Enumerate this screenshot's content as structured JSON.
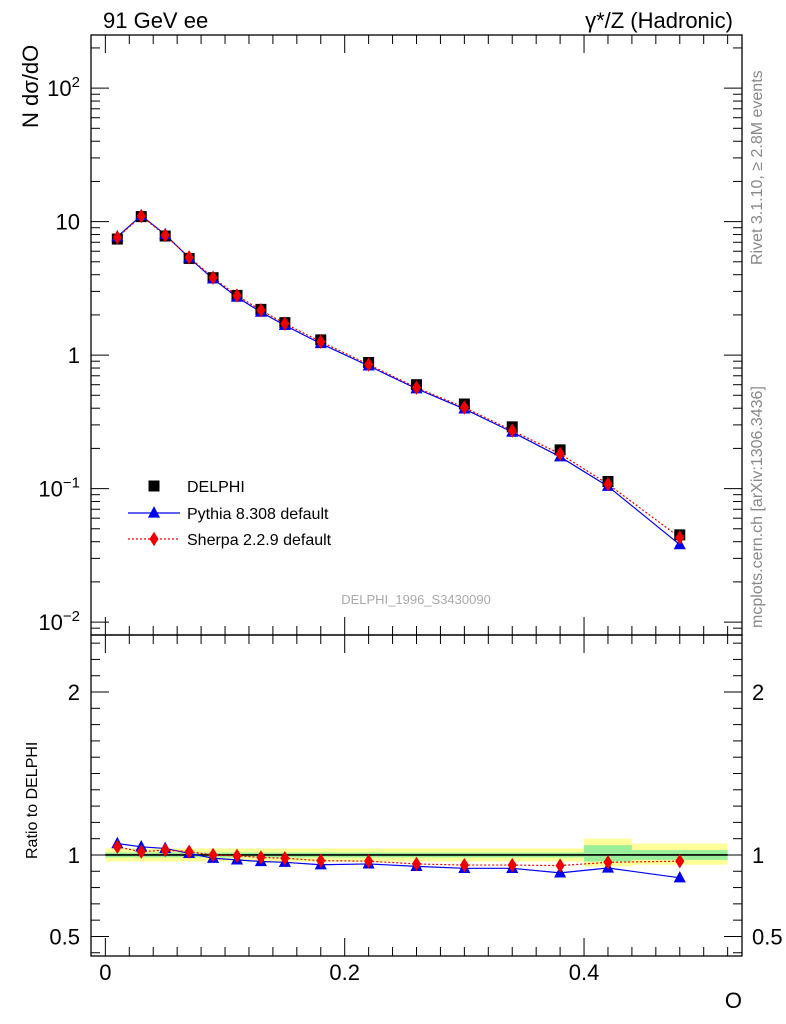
{
  "header": {
    "left": "91 GeV ee",
    "right": "γ*/Z (Hadronic)"
  },
  "side_text": {
    "rivet": "Rivet 3.1.10, ≥ 2.8M events",
    "site": "mcplots.cern.ch [arXiv:1306.3436]"
  },
  "watermark": "DELPHI_1996_S3430090",
  "colors": {
    "data": "#000000",
    "pythia": "#0000ee",
    "sherpa": "#ee0000",
    "band_yellow": "#ffff99",
    "band_green": "#99ee99"
  },
  "chart_data": [
    {
      "type": "line",
      "panel": "main",
      "ylabel": "N dσ/dO",
      "yscale": "log",
      "ylim": [
        0.008,
        250
      ],
      "xlim": [
        -0.012,
        0.532
      ],
      "y_ticks": [
        {
          "value": 0.01,
          "base": "10",
          "exp": "−2"
        },
        {
          "value": 0.1,
          "base": "10",
          "exp": "−1"
        },
        {
          "value": 1,
          "base": "1",
          "exp": ""
        },
        {
          "value": 10,
          "base": "10",
          "exp": ""
        },
        {
          "value": 100,
          "base": "10",
          "exp": "2"
        }
      ],
      "x": [
        0.01,
        0.03,
        0.05,
        0.07,
        0.09,
        0.11,
        0.13,
        0.15,
        0.18,
        0.22,
        0.26,
        0.3,
        0.34,
        0.38,
        0.42,
        0.48
      ],
      "series": [
        {
          "name": "DELPHI",
          "style": "markers-square",
          "values": [
            7.4,
            10.9,
            7.8,
            5.3,
            3.8,
            2.8,
            2.2,
            1.75,
            1.3,
            0.88,
            0.6,
            0.43,
            0.29,
            0.195,
            0.113,
            0.045
          ]
        },
        {
          "name": "Pythia 8.308 default",
          "style": "line-triangle",
          "values": [
            7.7,
            11.1,
            8.0,
            5.35,
            3.72,
            2.72,
            2.1,
            1.67,
            1.22,
            0.83,
            0.56,
            0.395,
            0.265,
            0.173,
            0.104,
            0.038
          ]
        },
        {
          "name": "Sherpa 2.2.9 default",
          "style": "dotted-diamond",
          "values": [
            7.6,
            11.0,
            7.9,
            5.4,
            3.8,
            2.79,
            2.17,
            1.72,
            1.26,
            0.85,
            0.57,
            0.405,
            0.272,
            0.182,
            0.108,
            0.043
          ]
        }
      ]
    },
    {
      "type": "line",
      "panel": "ratio",
      "ylabel": "Ratio to DELPHI",
      "xlabel": "O",
      "ylim": [
        0.38,
        2.35
      ],
      "xlim": [
        -0.012,
        0.532
      ],
      "y_ticks": [
        0.5,
        1,
        2
      ],
      "x_ticks": [
        0,
        0.2,
        0.4
      ],
      "x": [
        0.01,
        0.03,
        0.05,
        0.07,
        0.09,
        0.11,
        0.13,
        0.15,
        0.18,
        0.22,
        0.26,
        0.3,
        0.34,
        0.38,
        0.42,
        0.48
      ],
      "series": [
        {
          "name": "Pythia 8.308 default",
          "values": [
            1.07,
            1.05,
            1.04,
            1.01,
            0.98,
            0.97,
            0.96,
            0.955,
            0.94,
            0.945,
            0.93,
            0.918,
            0.918,
            0.89,
            0.92,
            0.86
          ]
        },
        {
          "name": "Sherpa 2.2.9 default",
          "values": [
            1.05,
            1.02,
            1.03,
            1.02,
            1.0,
            0.995,
            0.985,
            0.98,
            0.965,
            0.962,
            0.945,
            0.938,
            0.938,
            0.935,
            0.955,
            0.962
          ]
        }
      ],
      "bands": [
        {
          "x0": 0.0,
          "x1": 0.4,
          "yellow_lo": 0.96,
          "yellow_hi": 1.04,
          "green_lo": 0.985,
          "green_hi": 1.015
        },
        {
          "x0": 0.4,
          "x1": 0.44,
          "yellow_lo": 0.93,
          "yellow_hi": 1.1,
          "green_lo": 0.96,
          "green_hi": 1.06
        },
        {
          "x0": 0.44,
          "x1": 0.52,
          "yellow_lo": 0.94,
          "yellow_hi": 1.07,
          "green_lo": 0.97,
          "green_hi": 1.03
        }
      ]
    }
  ]
}
